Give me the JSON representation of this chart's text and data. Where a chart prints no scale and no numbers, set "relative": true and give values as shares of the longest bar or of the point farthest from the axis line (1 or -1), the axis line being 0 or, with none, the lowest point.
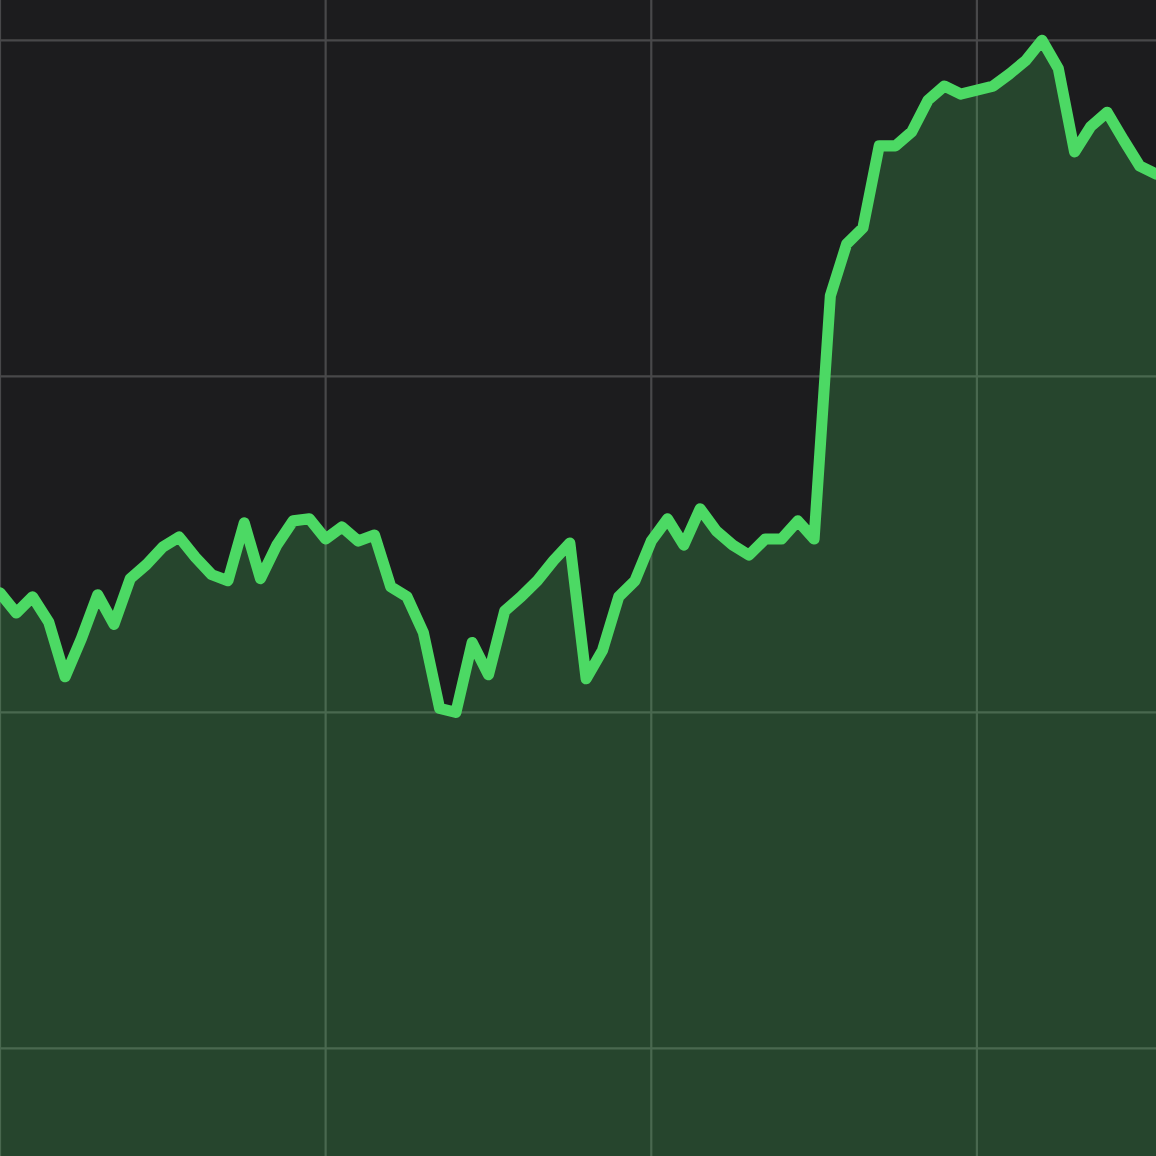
{
  "chart_data": {
    "type": "area",
    "relative": true,
    "grid": true,
    "marker": "none",
    "line_style": "solid",
    "categories": [
      null,
      null,
      null,
      null,
      null,
      null,
      null,
      null,
      null,
      null,
      null,
      null,
      null,
      null,
      null,
      null,
      null,
      null,
      null,
      null,
      null,
      null,
      null,
      null,
      null,
      null,
      null,
      null,
      null,
      null,
      null,
      null,
      null,
      null,
      null,
      null,
      null,
      null,
      null,
      null,
      null,
      null,
      null,
      null,
      null,
      null,
      null,
      null,
      null,
      null,
      null,
      null,
      null,
      null,
      null,
      null,
      null,
      null,
      null,
      null,
      null,
      null,
      null,
      null,
      null,
      null,
      null,
      null,
      null,
      null,
      null,
      null
    ],
    "series": [
      {
        "color": "#4cd964",
        "values": [
          0.178,
          0.148,
          0.172,
          0.134,
          0.053,
          0.11,
          0.175,
          0.131,
          0.199,
          0.22,
          0.246,
          0.261,
          0.231,
          0.205,
          0.196,
          0.282,
          0.199,
          0.249,
          0.285,
          0.288,
          0.258,
          0.276,
          0.255,
          0.264,
          0.187,
          0.172,
          0.119,
          0.006,
          0,
          0.104,
          0.056,
          0.151,
          0.172,
          0.196,
          0.226,
          0.252,
          0.05,
          0.092,
          0.172,
          0.196,
          0.255,
          0.288,
          0.249,
          0.303,
          0.27,
          0.249,
          0.234,
          0.258,
          0.258,
          0.285,
          0.258,
          0.62,
          0.697,
          0.721,
          0.843,
          0.843,
          0.864,
          0.911,
          0.932,
          0.92,
          0.926,
          0.932,
          0.95,
          0.97,
          1,
          0.958,
          0.834,
          0.872,
          0.893,
          0.852,
          0.813,
          0.801
        ]
      }
    ]
  }
}
